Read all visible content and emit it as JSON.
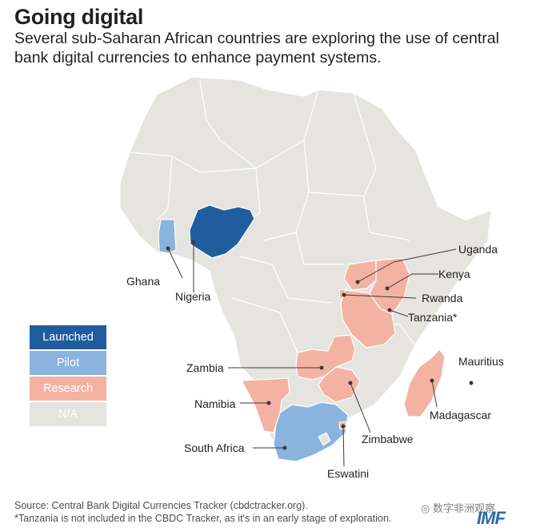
{
  "header": {
    "title": "Going digital",
    "subtitle": "Several sub-Saharan African countries are exploring the use of central bank digital currencies to enhance payment systems."
  },
  "legend": [
    {
      "label": "Launched",
      "color": "#1f5d9e",
      "text_color": "#ffffff"
    },
    {
      "label": "Pilot",
      "color": "#8ab4dd",
      "text_color": "#ffffff"
    },
    {
      "label": "Research",
      "color": "#f4b3a2",
      "text_color": "#ffffff"
    },
    {
      "label": "N/A",
      "color": "#e5e4df",
      "text_color": "#ffffff"
    }
  ],
  "countries": {
    "nigeria": {
      "label": "Nigeria",
      "status": "Launched"
    },
    "ghana": {
      "label": "Ghana",
      "status": "Pilot"
    },
    "south_africa": {
      "label": "South Africa",
      "status": "Pilot"
    },
    "uganda": {
      "label": "Uganda",
      "status": "Research"
    },
    "kenya": {
      "label": "Kenya",
      "status": "Research"
    },
    "rwanda": {
      "label": "Rwanda",
      "status": "Research"
    },
    "tanzania": {
      "label": "Tanzania*",
      "status": "Research"
    },
    "zambia": {
      "label": "Zambia",
      "status": "Research"
    },
    "zimbabwe": {
      "label": "Zimbabwe",
      "status": "Research"
    },
    "namibia": {
      "label": "Namibia",
      "status": "Research"
    },
    "madagascar": {
      "label": "Madagascar",
      "status": "Research"
    },
    "mauritius": {
      "label": "Mauritius",
      "status": "Research"
    },
    "eswatini": {
      "label": "Eswatini",
      "status": "Research"
    }
  },
  "colors": {
    "land": "#e5e4df",
    "border": "#ffffff",
    "launched": "#1f5d9e",
    "pilot": "#8ab4dd",
    "research": "#f4b3a2",
    "leader": "#3a3a3a"
  },
  "footer": {
    "source": "Source: Central Bank Digital Currencies Tracker (cbdctracker.org).",
    "note": "*Tanzania is not included in the CBDC Tracker, as it's in an early stage of exploration."
  },
  "watermark": {
    "text": "数字非洲观察",
    "icon": "wechat-icon"
  },
  "logo": {
    "text": "IMF"
  }
}
